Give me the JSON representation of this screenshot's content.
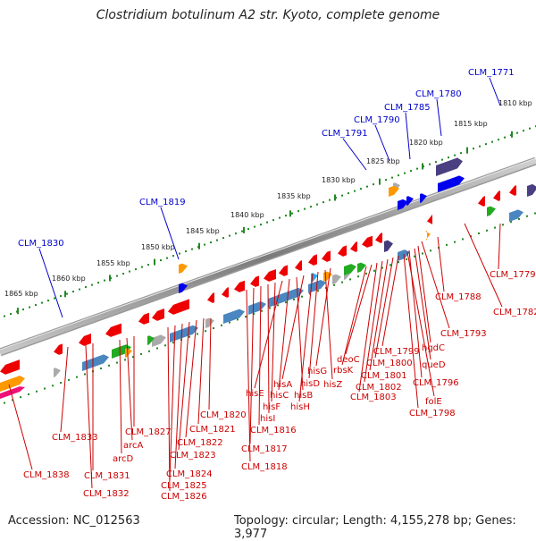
{
  "title": "Clostridium botulinum A2 str. Kyoto, complete genome",
  "accession": "Accession: NC_012563",
  "topology": "Topology: circular; Length: 4,155,278 bp; Genes: 3,977",
  "colors": {
    "backbone": "#808080",
    "gene_red": "#ee0000",
    "gene_blue": "#0000ee",
    "gene_steel": "#4a86c0",
    "gene_gray": "#aaaaaa",
    "gene_green": "#22aa22",
    "gene_orange": "#ff9900",
    "gene_purple": "#554488",
    "tick_green": "#228822",
    "label_blue": "#0000cc",
    "label_red": "#cc0000"
  },
  "ticks": [
    "1810 kbp",
    "1815 kbp",
    "1820 kbp",
    "1825 kbp",
    "1830 kbp",
    "1835 kbp",
    "1840 kbp",
    "1845 kbp",
    "1850 kbp",
    "1855 kbp",
    "1860 kbp",
    "1865 kbp"
  ],
  "labels_top": [
    "CLM_1771",
    "CLM_1780",
    "CLM_1785",
    "CLM_1790",
    "CLM_1791",
    "CLM_1819",
    "CLM_1830"
  ],
  "labels_bottom": [
    "CLM_1779",
    "CLM_1782",
    "CLM_1788",
    "CLM_1793",
    "hgdC",
    "queD",
    "CLM_1796",
    "folE",
    "CLM_1798",
    "CLM_1799",
    "CLM_1800",
    "CLM_1801",
    "CLM_1802",
    "CLM_1803",
    "deoC",
    "rbsK",
    "hisG",
    "hisZ",
    "hisD",
    "hisH",
    "hisA",
    "hisB",
    "hisC",
    "hisE",
    "hisF",
    "hisI",
    "CLM_1816",
    "CLM_1817",
    "CLM_1818",
    "CLM_1820",
    "CLM_1821",
    "CLM_1822",
    "CLM_1823",
    "CLM_1824",
    "CLM_1825",
    "CLM_1826",
    "CLM_1827",
    "arcA",
    "arcD",
    "CLM_1831",
    "CLM_1832",
    "CLM_1833",
    "CLM_1838"
  ]
}
